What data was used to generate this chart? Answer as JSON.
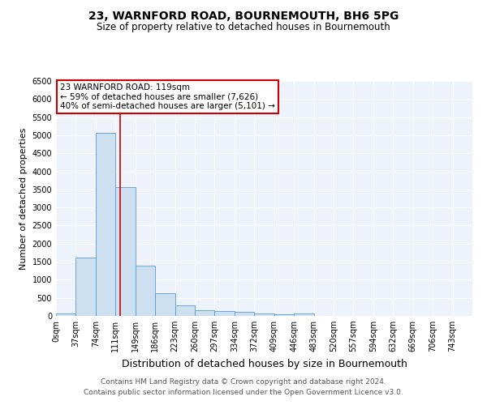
{
  "title": "23, WARNFORD ROAD, BOURNEMOUTH, BH6 5PG",
  "subtitle": "Size of property relative to detached houses in Bournemouth",
  "xlabel": "Distribution of detached houses by size in Bournemouth",
  "ylabel": "Number of detached properties",
  "bin_labels": [
    "0sqm",
    "37sqm",
    "74sqm",
    "111sqm",
    "149sqm",
    "186sqm",
    "223sqm",
    "260sqm",
    "297sqm",
    "334sqm",
    "372sqm",
    "409sqm",
    "446sqm",
    "483sqm",
    "520sqm",
    "557sqm",
    "594sqm",
    "632sqm",
    "669sqm",
    "706sqm",
    "743sqm"
  ],
  "bin_edges": [
    0,
    37,
    74,
    111,
    148,
    185,
    222,
    259,
    296,
    333,
    370,
    407,
    444,
    481,
    518,
    555,
    592,
    629,
    666,
    703,
    740,
    777
  ],
  "bar_heights": [
    75,
    1625,
    5075,
    3575,
    1400,
    625,
    300,
    160,
    140,
    105,
    60,
    45,
    60,
    0,
    0,
    0,
    0,
    0,
    0,
    0,
    0
  ],
  "bar_color": "#cce0f0",
  "bar_edge_color": "#5b9bd5",
  "property_size": 119,
  "red_line_color": "#cc0000",
  "annotation_text": "23 WARNFORD ROAD: 119sqm\n← 59% of detached houses are smaller (7,626)\n40% of semi-detached houses are larger (5,101) →",
  "annotation_box_color": "#ffffff",
  "annotation_box_edge_color": "#cc0000",
  "ylim": [
    0,
    6500
  ],
  "yticks": [
    0,
    500,
    1000,
    1500,
    2000,
    2500,
    3000,
    3500,
    4000,
    4500,
    5000,
    5500,
    6000,
    6500
  ],
  "footnote1": "Contains HM Land Registry data © Crown copyright and database right 2024.",
  "footnote2": "Contains public sector information licensed under the Open Government Licence v3.0.",
  "title_fontsize": 10,
  "subtitle_fontsize": 8.5,
  "xlabel_fontsize": 9,
  "ylabel_fontsize": 8,
  "tick_fontsize": 7,
  "annotation_fontsize": 7.5,
  "footnote_fontsize": 6.5,
  "bg_color": "#eef2fa"
}
